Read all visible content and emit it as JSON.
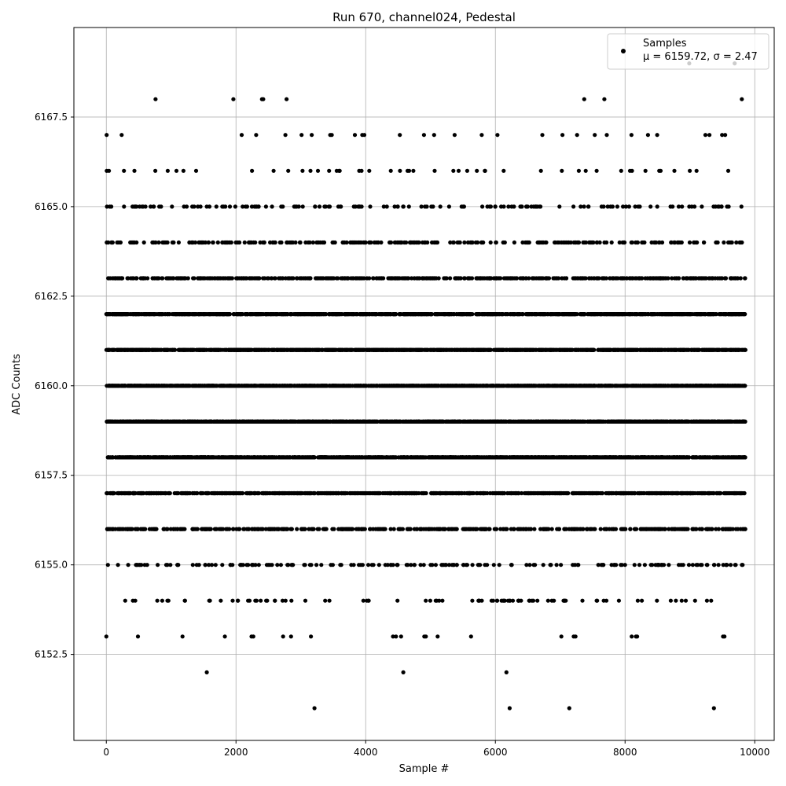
{
  "chart_data": {
    "type": "scatter",
    "title": "Run 670, channel024, Pedestal",
    "xlabel": "Sample #",
    "ylabel": "ADC Counts",
    "xlim": [
      -500,
      10300
    ],
    "ylim": [
      6150.1,
      6170.0
    ],
    "xticks": [
      0,
      2000,
      4000,
      6000,
      8000,
      10000
    ],
    "xtick_labels": [
      "0",
      "2000",
      "4000",
      "6000",
      "8000",
      "10000"
    ],
    "yticks": [
      6152.5,
      6155.0,
      6157.5,
      6160.0,
      6162.5,
      6165.0,
      6167.5
    ],
    "ytick_labels": [
      "6152.5",
      "6155.0",
      "6157.5",
      "6160.0",
      "6162.5",
      "6165.0",
      "6167.5"
    ],
    "grid": true,
    "legend_position": "top-right",
    "series": [
      {
        "name": "Samples",
        "marker_color": "#000000",
        "n_samples": 9856,
        "mean": 6159.72,
        "sigma": 2.47,
        "sparse_points": [
          {
            "x": 760,
            "y": 6168
          },
          {
            "x": 1960,
            "y": 6168
          },
          {
            "x": 2400,
            "y": 6168
          },
          {
            "x": 2420,
            "y": 6168
          },
          {
            "x": 2780,
            "y": 6168
          },
          {
            "x": 7370,
            "y": 6168
          },
          {
            "x": 7680,
            "y": 6168
          },
          {
            "x": 9800,
            "y": 6168
          },
          {
            "x": 8990,
            "y": 6169
          },
          {
            "x": 9690,
            "y": 6169
          },
          {
            "x": 1550,
            "y": 6152
          },
          {
            "x": 4580,
            "y": 6152
          },
          {
            "x": 6170,
            "y": 6152
          },
          {
            "x": 3210,
            "y": 6151
          },
          {
            "x": 6220,
            "y": 6151
          },
          {
            "x": 7140,
            "y": 6151
          },
          {
            "x": 9370,
            "y": 6151
          }
        ],
        "level_counts": [
          {
            "y": 6153,
            "count": 24
          },
          {
            "y": 6154,
            "count": 90
          },
          {
            "y": 6155,
            "count": 180
          },
          {
            "y": 6156,
            "count": 480
          },
          {
            "y": 6157,
            "count": 1000
          },
          {
            "y": 6158,
            "count": 1500
          },
          {
            "y": 6159,
            "count": 1700
          },
          {
            "y": 6160,
            "count": 1750
          },
          {
            "y": 6161,
            "count": 1500
          },
          {
            "y": 6162,
            "count": 1200
          },
          {
            "y": 6163,
            "count": 550
          },
          {
            "y": 6164,
            "count": 300
          },
          {
            "y": 6165,
            "count": 150
          },
          {
            "y": 6166,
            "count": 50
          },
          {
            "y": 6167,
            "count": 30
          }
        ]
      }
    ],
    "legend": {
      "label": "Samples",
      "stats_label": "μ = 6159.72, σ = 2.47"
    }
  }
}
